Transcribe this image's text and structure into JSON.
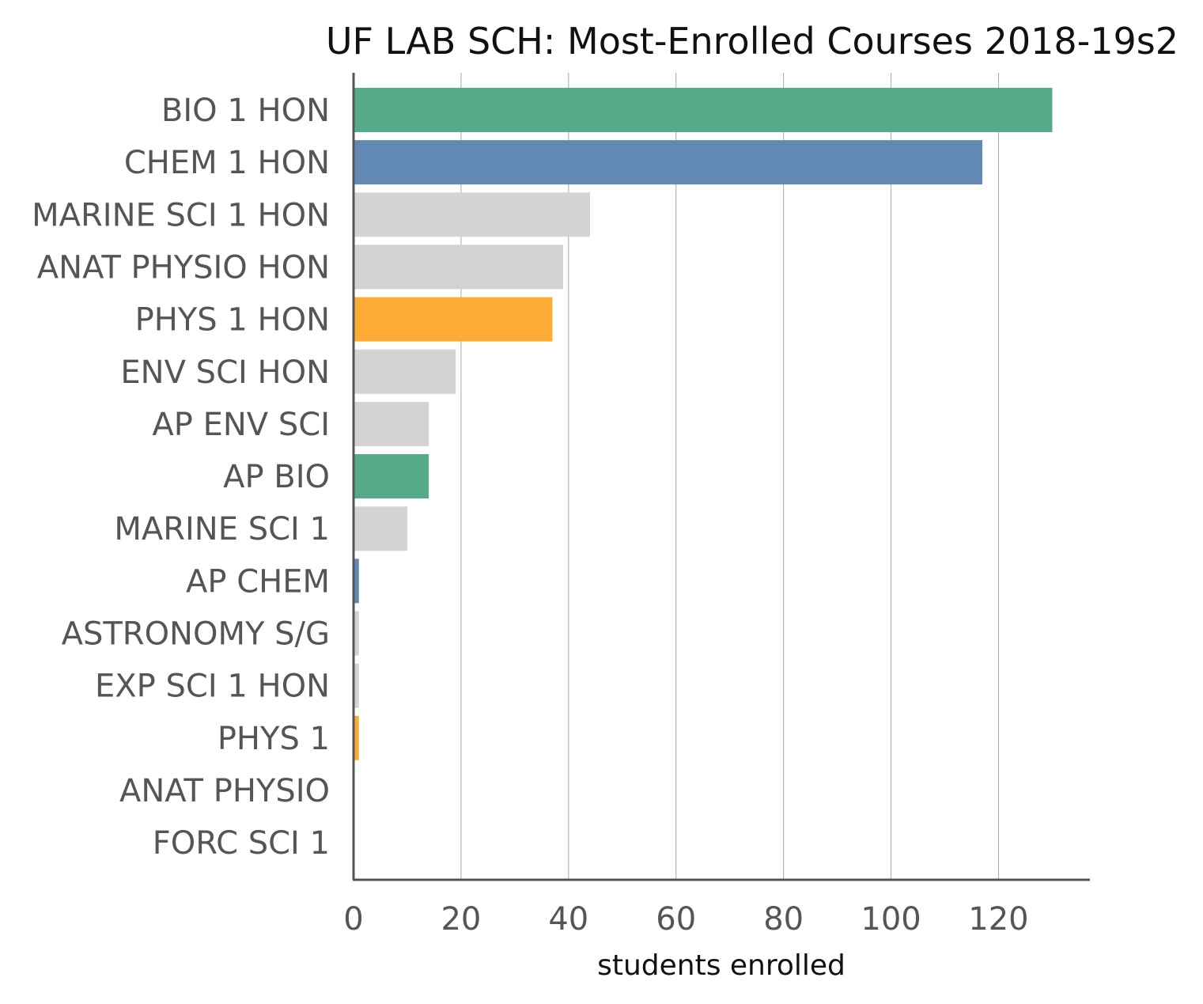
{
  "chart_data": {
    "type": "bar",
    "orientation": "horizontal",
    "title": "UF LAB SCH: Most-Enrolled Courses 2018-19s2",
    "xlabel": "students enrolled",
    "ylabel": "",
    "xlim": [
      0,
      137
    ],
    "xticks": [
      0,
      20,
      40,
      60,
      80,
      100,
      120
    ],
    "grid": "vertical",
    "legend": "none",
    "colors": {
      "bio": "#55ab87",
      "chem": "#6288b4",
      "phys": "#fcac35",
      "other": "#d3d3d3"
    },
    "categories": [
      "BIO 1 HON",
      "CHEM 1 HON",
      "MARINE SCI 1 HON",
      "ANAT PHYSIO HON",
      "PHYS 1 HON",
      "ENV SCI HON",
      "AP ENV SCI",
      "AP BIO",
      "MARINE SCI 1",
      "AP CHEM",
      "ASTRONOMY S/G",
      "EXP SCI 1 HON",
      "PHYS 1",
      "ANAT PHYSIO",
      "FORC SCI 1"
    ],
    "values": [
      130,
      117,
      44,
      39,
      37,
      19,
      14,
      14,
      10,
      1,
      1,
      1,
      1,
      0,
      0
    ],
    "bar_colors": [
      "bio",
      "chem",
      "other",
      "other",
      "phys",
      "other",
      "other",
      "bio",
      "other",
      "chem",
      "other",
      "other",
      "phys",
      "other",
      "other"
    ]
  }
}
